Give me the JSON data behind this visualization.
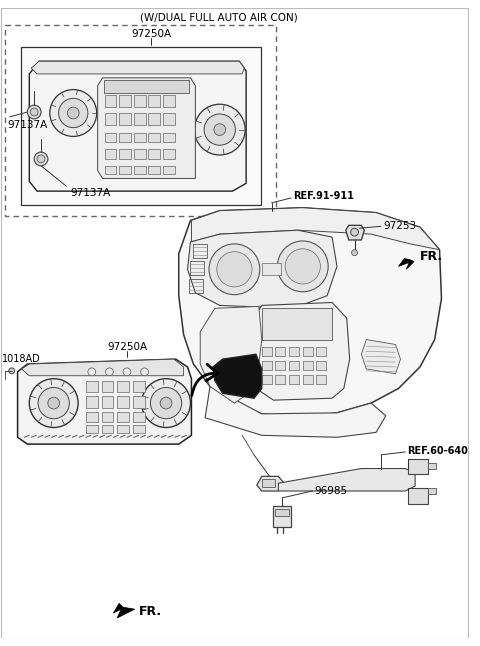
{
  "bg_color": "#ffffff",
  "lc": "#333333",
  "labels": {
    "dual_auto": "(W/DUAL FULL AUTO AIR CON)",
    "97250A_top": "97250A",
    "97137A_left": "97137A",
    "97137A_btm": "97137A",
    "ref_91_911": "REF.91-911",
    "97253": "97253",
    "FR_top": "FR.",
    "97250A_main": "97250A",
    "1018AD": "1018AD",
    "ref_60_640": "REF.60-640",
    "96985": "96985",
    "FR_btm": "FR."
  },
  "figsize": [
    4.8,
    6.46
  ],
  "dpi": 100
}
